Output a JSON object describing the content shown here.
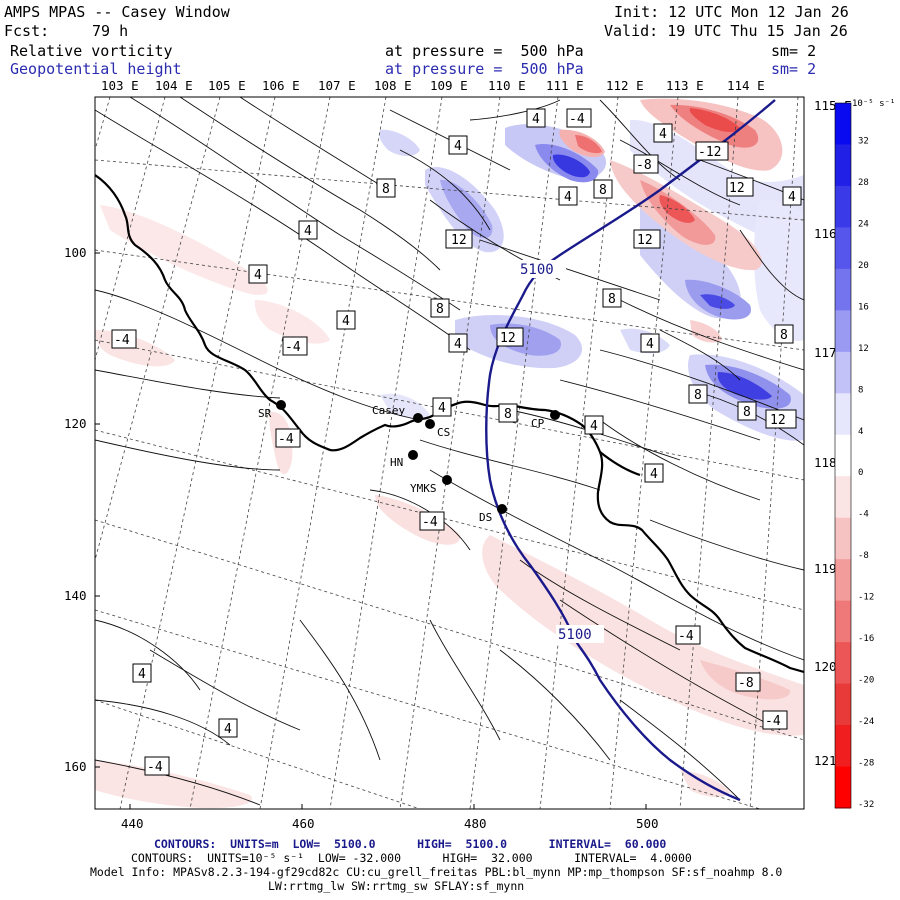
{
  "header": {
    "title": "AMPS MPAS -- Casey Window",
    "forecast_label": "Fcst:",
    "forecast_value": "79 h",
    "init": "Init: 12 UTC Mon 12 Jan 26",
    "valid": "Valid: 19 UTC Thu 15 Jan 26",
    "field1_name": "Relative vorticity",
    "field1_level": "at pressure =  500 hPa",
    "field1_smooth": "sm= 2",
    "field2_name": "Geopotential height",
    "field2_level": "at pressure =  500 hPa",
    "field2_smooth": "sm= 2"
  },
  "map": {
    "lon_labels": [
      "103 E",
      "104 E",
      "105 E",
      "106 E",
      "107 E",
      "108 E",
      "109 E",
      "110 E",
      "111 E",
      "112 E",
      "113 E",
      "114 E"
    ],
    "right_lon_labels": [
      "115 E",
      "116 E",
      "117 E",
      "118 E",
      "119 E",
      "120 E",
      "121 E"
    ],
    "x_ticks": [
      "440",
      "460",
      "480",
      "500"
    ],
    "y_ticks": [
      "100",
      "120",
      "140",
      "160"
    ],
    "stations": [
      {
        "name": "SR"
      },
      {
        "name": "Casey"
      },
      {
        "name": "CS"
      },
      {
        "name": "HN"
      },
      {
        "name": "YMKS"
      },
      {
        "name": "DS"
      },
      {
        "name": "CP"
      }
    ],
    "height_labels": [
      "5100",
      "5100"
    ],
    "vort_labels": [
      "4",
      "-4",
      "4",
      "8",
      "12",
      "-8",
      "-12",
      "12",
      "8",
      "4",
      "8",
      "4",
      "12",
      "8",
      "4",
      "-4",
      "4",
      "4",
      "4",
      "8",
      "4",
      "12",
      "8",
      "4",
      "8",
      "8",
      "12",
      "-4",
      "4",
      "4",
      "-4",
      "-4",
      "-8",
      "-4",
      "-4",
      "4",
      "-4",
      "4",
      "4"
    ]
  },
  "colorbar": {
    "units": "10⁻⁵ s⁻¹",
    "levels": [
      "32",
      "28",
      "24",
      "20",
      "16",
      "12",
      "8",
      "4",
      "0",
      "-4",
      "-8",
      "-12",
      "-16",
      "-20",
      "-24",
      "-28",
      "-32"
    ],
    "colors": [
      "#0a0af0",
      "#2020e6",
      "#3a3ae8",
      "#5656ec",
      "#7474ef",
      "#9a9af3",
      "#c2c2f8",
      "#e6e6fc",
      "#ffffff",
      "#fbe4e4",
      "#f7c2c2",
      "#f39c9c",
      "#ef7878",
      "#ec5656",
      "#e93a3a",
      "#f01e1e",
      "#ff0000"
    ]
  },
  "footer": {
    "line1": "CONTOURS:  UNITS=m  LOW=  5100.0      HIGH=  5100.0      INTERVAL=  60.000",
    "line2": "CONTOURS:  UNITS=10⁻⁵ s⁻¹  LOW= -32.000      HIGH=  32.000      INTERVAL=  4.0000",
    "line3": "Model Info: MPASv8.2.3-194-gf29cd82c CU:cu_grell_freitas PBL:bl_mynn MP:mp_thompson SF:sf_noahmp 8.0",
    "line4": "LW:rrtmg_lw SW:rrtmg_sw SFLAY:sf_mynn"
  }
}
